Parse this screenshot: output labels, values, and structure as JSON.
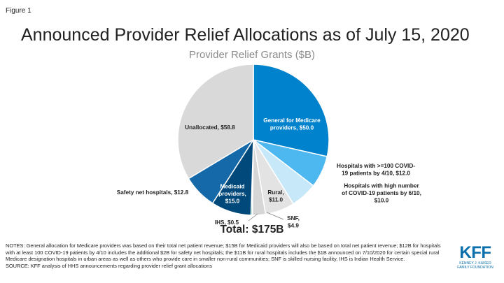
{
  "figure_label": "Figure 1",
  "title": "Announced Provider Relief Allocations as of July 15, 2020",
  "subtitle": "Provider Relief Grants ($B)",
  "total": "Total: $175B",
  "notes": "NOTES: General allocation for Medicare providers was based on their total net patient revenue; $15B for Medicaid providers will also be based on total net patient revenue; $12B for hospitals with at least 100 COVID-19 patients by 4/10 includes the additional $2B for safety net hospitals; the $11B for rural hospitals includes the $1B announced on 7/10/2020 for certain special rural Medicare designation hospitals in urban areas as well as others who provide care in smaller non-rural communities; SNF is skilled nursing facility, IHS is Indian Health Service.",
  "source": "SOURCE: KFF analysis of HHS announcements regarding provider relief grant allocations",
  "logo": {
    "mark": "KFF",
    "sub_line1": "KENNEY J. KAISER",
    "sub_line2": "FAMILY FOUNDATION"
  },
  "chart_data": {
    "type": "pie",
    "title": "Provider Relief Grants ($B)",
    "slices": [
      {
        "label": "General for Medicare providers",
        "value": 50.0,
        "display": [
          "General for Medicare",
          "providers, $50.0"
        ],
        "color": "#0082cc",
        "label_inside": true
      },
      {
        "label": "Hospitals with >=100 COVID-19 patients by 4/10",
        "value": 12.0,
        "display": [
          "Hospitals with >=100 COVID-",
          "19 patients by 4/10, $12.0"
        ],
        "color": "#4db8f0",
        "label_inside": false
      },
      {
        "label": "Hospitals with high number of COVID-19 patients by 6/10",
        "value": 10.0,
        "display": [
          "Hospitals with high number",
          "of COVID-19 patients by 6/10,",
          "$10.0"
        ],
        "color": "#c7e8f8",
        "label_inside": false
      },
      {
        "label": "Rural",
        "value": 11.0,
        "display": [
          "Rural,",
          "$11.0"
        ],
        "color": "#e3e3e3",
        "label_inside": true
      },
      {
        "label": "SNF",
        "value": 4.9,
        "display": [
          "SNF,",
          "$4.9"
        ],
        "color": "#d6d6d6",
        "label_inside": false
      },
      {
        "label": "IHS",
        "value": 0.5,
        "display": [
          "IHS, $0.5"
        ],
        "color": "#0aa070",
        "label_inside": false
      },
      {
        "label": "Medicaid providers",
        "value": 15.0,
        "display": [
          "Medicaid",
          "providers,",
          "$15.0"
        ],
        "color": "#00497a",
        "label_inside": true
      },
      {
        "label": "Safety net hospitals",
        "value": 12.8,
        "display": [
          "Safety net hospitals, $12.8"
        ],
        "color": "#1569a8",
        "label_inside": false
      },
      {
        "label": "Unallocated",
        "value": 58.8,
        "display": [
          "Unallocated, $58.8"
        ],
        "color": "#d9d9d9",
        "label_inside": true
      }
    ]
  }
}
